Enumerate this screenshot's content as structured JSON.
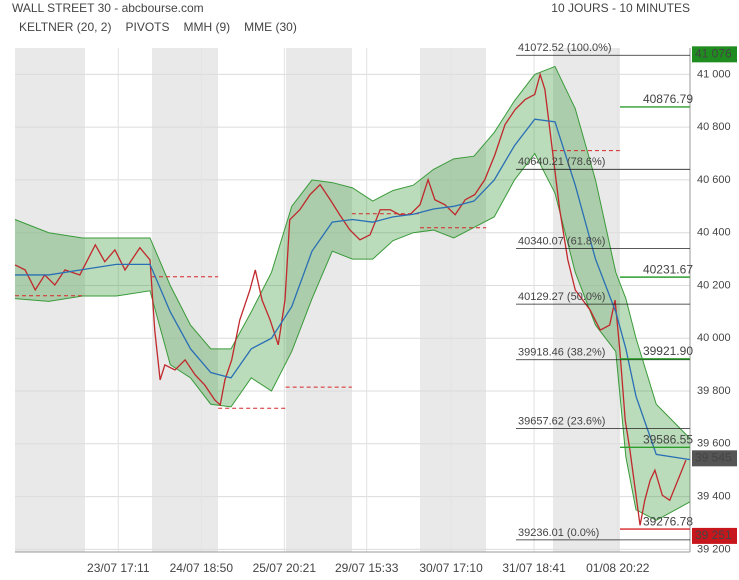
{
  "chart_data": {
    "type": "line",
    "title": "WALL STREET 30 - abcbourse.com",
    "subtitle": "10 JOURS - 10 MINUTES",
    "xlim": [
      0,
      100
    ],
    "xticks": [
      {
        "value": 15.3,
        "label": "23/07 17:11"
      },
      {
        "value": 27.6,
        "label": "24/07 18:50"
      },
      {
        "value": 39.9,
        "label": "25/07 20:21"
      },
      {
        "value": 52.1,
        "label": "29/07 15:33"
      },
      {
        "value": 64.6,
        "label": "30/07 17:10"
      },
      {
        "value": 76.9,
        "label": "31/07 18:41"
      },
      {
        "value": 89.3,
        "label": "01/08 20:22"
      }
    ],
    "ylim": [
      39190,
      41100
    ],
    "yticks": [
      {
        "value": 39200,
        "label": "39 200"
      },
      {
        "value": 39400,
        "label": "39 400"
      },
      {
        "value": 39600,
        "label": "39 600"
      },
      {
        "value": 39800,
        "label": "39 800"
      },
      {
        "value": 40000,
        "label": "40 000"
      },
      {
        "value": 40200,
        "label": "40 200"
      },
      {
        "value": 40400,
        "label": "40 400"
      },
      {
        "value": 40600,
        "label": "40 600"
      },
      {
        "value": 40800,
        "label": "40 800"
      },
      {
        "value": 41000,
        "label": "41 000"
      }
    ],
    "grid": true,
    "keltner": {
      "name": "KELTNER (20, 2)",
      "color": "#3a9a3a",
      "x": [
        0,
        5,
        10,
        15,
        20,
        23,
        26,
        29,
        32,
        35,
        38,
        41,
        44,
        47,
        50,
        53,
        56,
        59,
        62,
        65,
        68,
        71,
        74,
        77,
        80,
        83,
        86,
        89,
        90.5,
        92,
        95,
        100
      ],
      "upper": [
        40450,
        40400,
        40380,
        40380,
        40380,
        40200,
        40050,
        39960,
        39960,
        40100,
        40250,
        40500,
        40600,
        40590,
        40570,
        40520,
        40560,
        40580,
        40640,
        40680,
        40690,
        40780,
        40900,
        41000,
        41030,
        40870,
        40600,
        40250,
        40150,
        40000,
        39750,
        39620
      ],
      "lower": [
        40150,
        40140,
        40160,
        40160,
        40180,
        39900,
        39850,
        39750,
        39740,
        39850,
        39800,
        39950,
        40150,
        40330,
        40300,
        40300,
        40370,
        40400,
        40410,
        40380,
        40420,
        40460,
        40600,
        40700,
        40550,
        40250,
        40050,
        39950,
        39550,
        39350,
        39310,
        39380
      ]
    },
    "pivots": {
      "name": "PIVOTS",
      "color": "#d62728",
      "segments": [
        {
          "x": [
            0,
            10.4
          ],
          "value": 40161
        },
        {
          "x": [
            20.3,
            30.1
          ],
          "value": 40233
        },
        {
          "x": [
            30.1,
            40.1
          ],
          "value": 39735
        },
        {
          "x": [
            40.1,
            49.9
          ],
          "value": 39815
        },
        {
          "x": [
            49.9,
            60
          ],
          "value": 40472
        },
        {
          "x": [
            60,
            69.8
          ],
          "value": 40419
        },
        {
          "x": [
            79.7,
            89.6
          ],
          "value": 40711
        }
      ]
    },
    "series": [
      {
        "name": "MMH (9)",
        "color": "#c0282c",
        "x": [
          0,
          1.5,
          3,
          4.4,
          5.9,
          7.4,
          9.6,
          11.9,
          13.3,
          14.8,
          16.3,
          18.5,
          20,
          20.7,
          21.5,
          22.2,
          23.7,
          25.2,
          26.7,
          28.1,
          29.6,
          30.4,
          31.1,
          32.1,
          33.3,
          34.8,
          35.6,
          36.6,
          37.8,
          39,
          40,
          40.7,
          42.2,
          43.7,
          45.2,
          46.7,
          48.1,
          49.6,
          51.1,
          52.6,
          54.1,
          55.6,
          57,
          58.5,
          60,
          61.2,
          62.2,
          63.7,
          65.2,
          66.7,
          68.1,
          69.6,
          71.1,
          72.6,
          74.1,
          75.6,
          77,
          77.8,
          78.5,
          79.6,
          80.7,
          81.9,
          83,
          84.1,
          85.2,
          86.7,
          88.1,
          88.9,
          89.6,
          90.4,
          91.1,
          91.9,
          92.6,
          93.3,
          94.1,
          94.8,
          95.9,
          97,
          98.2,
          99.4
        ],
        "values": [
          40278,
          40259,
          40183,
          40240,
          40202,
          40259,
          40240,
          40354,
          40290,
          40335,
          40259,
          40343,
          40297,
          40031,
          39842,
          39899,
          39880,
          39918,
          39861,
          39823,
          39766,
          39747,
          39842,
          39918,
          40069,
          40183,
          40259,
          40145,
          40069,
          39975,
          40145,
          40449,
          40487,
          40544,
          40582,
          40525,
          40468,
          40411,
          40373,
          40392,
          40487,
          40487,
          40468,
          40468,
          40506,
          40601,
          40525,
          40506,
          40468,
          40525,
          40544,
          40601,
          40696,
          40810,
          40867,
          40905,
          40924,
          41000,
          40943,
          40715,
          40487,
          40297,
          40183,
          40145,
          40107,
          40031,
          40050,
          40145,
          39956,
          39690,
          39576,
          39424,
          39291,
          39386,
          39462,
          39500,
          39405,
          39386,
          39462,
          39538
        ]
      },
      {
        "name": "MME (30)",
        "color": "#2a6fb5",
        "x": [
          0,
          5,
          10,
          15,
          20,
          23,
          26,
          29,
          32,
          35,
          38,
          41,
          44,
          47,
          50,
          53,
          56,
          59,
          62,
          65,
          68,
          71,
          74,
          77,
          80,
          83,
          86,
          89,
          90.5,
          92,
          95,
          100
        ],
        "values": [
          40240,
          40240,
          40260,
          40280,
          40280,
          40100,
          39960,
          39870,
          39850,
          39960,
          40000,
          40120,
          40330,
          40440,
          40450,
          40440,
          40460,
          40470,
          40490,
          40500,
          40520,
          40600,
          40730,
          40830,
          40820,
          40580,
          40300,
          40100,
          39960,
          39780,
          39560,
          39540
        ]
      }
    ],
    "fib_levels": [
      {
        "value": 41072.52,
        "label": "41072.52  (100.0%)"
      },
      {
        "value": 40640.21,
        "label": "40640.21  (78.6%)"
      },
      {
        "value": 40340.07,
        "label": "40340.07  (61.8%)"
      },
      {
        "value": 40129.27,
        "label": "40129.27  (50.0%)"
      },
      {
        "value": 39918.46,
        "label": "39918.46  (38.2%)"
      },
      {
        "value": 39657.62,
        "label": "39657.62  (23.6%)"
      },
      {
        "value": 39236.01,
        "label": "39236.01  (0.0%)"
      }
    ],
    "levels": [
      {
        "value": 40876.79,
        "label": "40876.79",
        "color": "#2e9e2e"
      },
      {
        "value": 40231.67,
        "label": "40231.67",
        "color": "#2e9e2e"
      },
      {
        "value": 39921.9,
        "label": "39921.90",
        "color": "#2e9e2e"
      },
      {
        "value": 39586.55,
        "label": "39586.55",
        "color": "#2e9e2e"
      },
      {
        "value": 39276.78,
        "label": "39276.78",
        "color": "#d62728"
      }
    ],
    "price_tags": [
      {
        "value": 41076,
        "label": "41 076",
        "color": "#1f8c1f"
      },
      {
        "value": 39545,
        "label": "39 545",
        "color": "#555555"
      },
      {
        "value": 39251,
        "label": "39 251",
        "color": "#c8161d"
      }
    ]
  }
}
